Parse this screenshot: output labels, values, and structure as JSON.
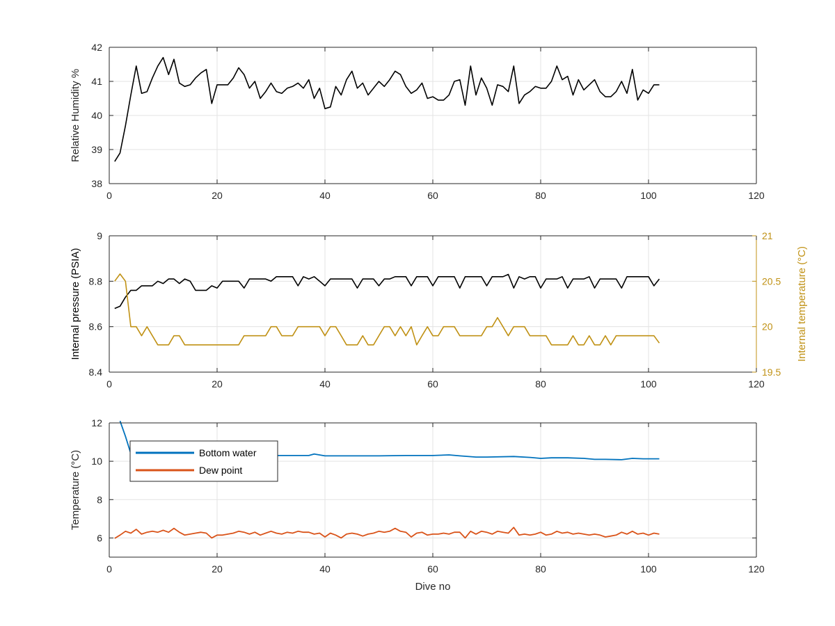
{
  "chart_data": [
    {
      "type": "line",
      "xlabel": "",
      "ylabel": "Relative Humidity %",
      "xlim": [
        0,
        120
      ],
      "ylim": [
        38,
        42
      ],
      "xticks": [
        0,
        20,
        40,
        60,
        80,
        100,
        120
      ],
      "yticks": [
        38,
        39,
        40,
        41,
        42
      ],
      "grid": true,
      "series": [
        {
          "color": "#000000",
          "x": [
            1,
            2,
            3,
            4,
            5,
            6,
            7,
            8,
            9,
            10,
            11,
            12,
            13,
            14,
            15,
            16,
            17,
            18,
            19,
            20,
            21,
            22,
            23,
            24,
            25,
            26,
            27,
            28,
            29,
            30,
            31,
            32,
            33,
            34,
            35,
            36,
            37,
            38,
            39,
            40,
            41,
            42,
            43,
            44,
            45,
            46,
            47,
            48,
            49,
            50,
            51,
            52,
            53,
            54,
            55,
            56,
            57,
            58,
            59,
            60,
            61,
            62,
            63,
            64,
            65,
            66,
            67,
            68,
            69,
            70,
            71,
            72,
            73,
            74,
            75,
            76,
            77,
            78,
            79,
            80,
            81,
            82,
            83,
            84,
            85,
            86,
            87,
            88,
            89,
            90,
            91,
            92,
            93,
            94,
            95,
            96,
            97,
            98,
            99,
            100,
            101,
            102
          ],
          "values": [
            38.65,
            38.9,
            39.7,
            40.6,
            41.45,
            40.65,
            40.7,
            41.1,
            41.45,
            41.7,
            41.2,
            41.65,
            40.95,
            40.85,
            40.9,
            41.1,
            41.25,
            41.35,
            40.35,
            40.9,
            40.9,
            40.9,
            41.1,
            41.4,
            41.2,
            40.8,
            41.0,
            40.5,
            40.7,
            40.95,
            40.7,
            40.65,
            40.8,
            40.85,
            40.95,
            40.8,
            41.05,
            40.5,
            40.8,
            40.2,
            40.25,
            40.85,
            40.6,
            41.05,
            41.3,
            40.8,
            40.95,
            40.6,
            40.8,
            41.0,
            40.85,
            41.05,
            41.3,
            41.2,
            40.85,
            40.65,
            40.75,
            40.95,
            40.5,
            40.55,
            40.45,
            40.45,
            40.6,
            41.0,
            41.05,
            40.3,
            41.45,
            40.6,
            41.1,
            40.8,
            40.3,
            40.9,
            40.85,
            40.7,
            41.45,
            40.35,
            40.6,
            40.7,
            40.85,
            40.8,
            40.8,
            41.0,
            41.45,
            41.05,
            41.15,
            40.6,
            41.05,
            40.75,
            40.9,
            41.05,
            40.7,
            40.55,
            40.55,
            40.7,
            41.0,
            40.65,
            41.35,
            40.45,
            40.75,
            40.65,
            40.9,
            40.9
          ]
        }
      ]
    },
    {
      "type": "line",
      "xlabel": "",
      "ylabel": "Internal pressure (PSIA)",
      "ylabel_right": "Internal temperature (°C)",
      "xlim": [
        0,
        120
      ],
      "ylim": [
        8.4,
        9.0
      ],
      "ylim_right": [
        19.5,
        21
      ],
      "xticks": [
        0,
        20,
        40,
        60,
        80,
        100,
        120
      ],
      "yticks": [
        8.4,
        8.6,
        8.8,
        9
      ],
      "yticks_right": [
        19.5,
        20,
        20.5,
        21
      ],
      "grid": true,
      "right_axis_color": "#c09114",
      "series": [
        {
          "color": "#000000",
          "axis": "left",
          "x": [
            1,
            2,
            3,
            4,
            5,
            6,
            7,
            8,
            9,
            10,
            11,
            12,
            13,
            14,
            15,
            16,
            17,
            18,
            19,
            20,
            21,
            22,
            23,
            24,
            25,
            26,
            27,
            28,
            29,
            30,
            31,
            32,
            33,
            34,
            35,
            36,
            37,
            38,
            39,
            40,
            41,
            42,
            43,
            44,
            45,
            46,
            47,
            48,
            49,
            50,
            51,
            52,
            53,
            54,
            55,
            56,
            57,
            58,
            59,
            60,
            61,
            62,
            63,
            64,
            65,
            66,
            67,
            68,
            69,
            70,
            71,
            72,
            73,
            74,
            75,
            76,
            77,
            78,
            79,
            80,
            81,
            82,
            83,
            84,
            85,
            86,
            87,
            88,
            89,
            90,
            91,
            92,
            93,
            94,
            95,
            96,
            97,
            98,
            99,
            100,
            101,
            102
          ],
          "values": [
            8.68,
            8.69,
            8.73,
            8.76,
            8.76,
            8.78,
            8.78,
            8.78,
            8.8,
            8.79,
            8.81,
            8.81,
            8.79,
            8.81,
            8.8,
            8.76,
            8.76,
            8.76,
            8.78,
            8.77,
            8.8,
            8.8,
            8.8,
            8.8,
            8.77,
            8.81,
            8.81,
            8.81,
            8.81,
            8.8,
            8.82,
            8.82,
            8.82,
            8.82,
            8.78,
            8.82,
            8.81,
            8.82,
            8.8,
            8.78,
            8.81,
            8.81,
            8.81,
            8.81,
            8.81,
            8.77,
            8.81,
            8.81,
            8.81,
            8.78,
            8.81,
            8.81,
            8.82,
            8.82,
            8.82,
            8.78,
            8.82,
            8.82,
            8.82,
            8.78,
            8.82,
            8.82,
            8.82,
            8.82,
            8.77,
            8.82,
            8.82,
            8.82,
            8.82,
            8.78,
            8.82,
            8.82,
            8.82,
            8.83,
            8.77,
            8.82,
            8.81,
            8.82,
            8.82,
            8.77,
            8.81,
            8.81,
            8.81,
            8.82,
            8.77,
            8.81,
            8.81,
            8.81,
            8.82,
            8.77,
            8.81,
            8.81,
            8.81,
            8.81,
            8.77,
            8.82,
            8.82,
            8.82,
            8.82,
            8.82,
            8.78,
            8.81
          ]
        },
        {
          "color": "#c09114",
          "axis": "right",
          "x": [
            1,
            2,
            3,
            4,
            5,
            6,
            7,
            8,
            9,
            10,
            11,
            12,
            13,
            14,
            15,
            16,
            17,
            18,
            19,
            20,
            21,
            22,
            23,
            24,
            25,
            26,
            27,
            28,
            29,
            30,
            31,
            32,
            33,
            34,
            35,
            36,
            37,
            38,
            39,
            40,
            41,
            42,
            43,
            44,
            45,
            46,
            47,
            48,
            49,
            50,
            51,
            52,
            53,
            54,
            55,
            56,
            57,
            58,
            59,
            60,
            61,
            62,
            63,
            64,
            65,
            66,
            67,
            68,
            69,
            70,
            71,
            72,
            73,
            74,
            75,
            76,
            77,
            78,
            79,
            80,
            81,
            82,
            83,
            84,
            85,
            86,
            87,
            88,
            89,
            90,
            91,
            92,
            93,
            94,
            95,
            96,
            97,
            98,
            99,
            100,
            101,
            102
          ],
          "values": [
            20.5,
            20.58,
            20.5,
            20.0,
            20.0,
            19.9,
            20.0,
            19.9,
            19.8,
            19.8,
            19.8,
            19.9,
            19.9,
            19.8,
            19.8,
            19.8,
            19.8,
            19.8,
            19.8,
            19.8,
            19.8,
            19.8,
            19.8,
            19.8,
            19.9,
            19.9,
            19.9,
            19.9,
            19.9,
            20.0,
            20.0,
            19.9,
            19.9,
            19.9,
            20.0,
            20.0,
            20.0,
            20.0,
            20.0,
            19.9,
            20.0,
            20.0,
            19.9,
            19.8,
            19.8,
            19.8,
            19.9,
            19.8,
            19.8,
            19.9,
            20.0,
            20.0,
            19.9,
            20.0,
            19.9,
            20.0,
            19.8,
            19.9,
            20.0,
            19.9,
            19.9,
            20.0,
            20.0,
            20.0,
            19.9,
            19.9,
            19.9,
            19.9,
            19.9,
            20.0,
            20.0,
            20.1,
            20.0,
            19.9,
            20.0,
            20.0,
            20.0,
            19.9,
            19.9,
            19.9,
            19.9,
            19.8,
            19.8,
            19.8,
            19.8,
            19.9,
            19.8,
            19.8,
            19.9,
            19.8,
            19.8,
            19.9,
            19.8,
            19.9,
            19.9,
            19.9,
            19.9,
            19.9,
            19.9,
            19.9,
            19.9,
            19.82
          ]
        }
      ]
    },
    {
      "type": "line",
      "xlabel": "Dive no",
      "ylabel": "Temperature (°C)",
      "xlim": [
        0,
        120
      ],
      "ylim": [
        5,
        12
      ],
      "xticks": [
        0,
        20,
        40,
        60,
        80,
        100,
        120
      ],
      "yticks": [
        6,
        8,
        10,
        12
      ],
      "grid": true,
      "legend_position": "top-left",
      "series": [
        {
          "name": "Bottom water",
          "color": "#0072bd",
          "x": [
            2,
            3,
            4,
            5,
            10,
            20,
            30,
            35,
            37,
            38,
            40,
            45,
            50,
            55,
            60,
            63,
            65,
            68,
            70,
            75,
            78,
            80,
            82,
            85,
            88,
            90,
            92,
            95,
            97,
            99,
            102
          ],
          "values": [
            12.1,
            11.3,
            10.4,
            10.3,
            10.3,
            10.3,
            10.3,
            10.3,
            10.3,
            10.38,
            10.28,
            10.28,
            10.28,
            10.3,
            10.3,
            10.33,
            10.28,
            10.22,
            10.22,
            10.25,
            10.2,
            10.15,
            10.18,
            10.18,
            10.15,
            10.1,
            10.1,
            10.08,
            10.15,
            10.13,
            10.13
          ]
        },
        {
          "name": "Dew point",
          "color": "#d95319",
          "x": [
            1,
            2,
            3,
            4,
            5,
            6,
            7,
            8,
            9,
            10,
            11,
            12,
            13,
            14,
            15,
            16,
            17,
            18,
            19,
            20,
            21,
            22,
            23,
            24,
            25,
            26,
            27,
            28,
            29,
            30,
            31,
            32,
            33,
            34,
            35,
            36,
            37,
            38,
            39,
            40,
            41,
            42,
            43,
            44,
            45,
            46,
            47,
            48,
            49,
            50,
            51,
            52,
            53,
            54,
            55,
            56,
            57,
            58,
            59,
            60,
            61,
            62,
            63,
            64,
            65,
            66,
            67,
            68,
            69,
            70,
            71,
            72,
            73,
            74,
            75,
            76,
            77,
            78,
            79,
            80,
            81,
            82,
            83,
            84,
            85,
            86,
            87,
            88,
            89,
            90,
            91,
            92,
            93,
            94,
            95,
            96,
            97,
            98,
            99,
            100,
            101,
            102
          ],
          "values": [
            5.98,
            6.15,
            6.35,
            6.25,
            6.45,
            6.2,
            6.3,
            6.35,
            6.3,
            6.4,
            6.3,
            6.5,
            6.3,
            6.15,
            6.2,
            6.25,
            6.3,
            6.25,
            6.0,
            6.15,
            6.15,
            6.2,
            6.25,
            6.35,
            6.3,
            6.2,
            6.3,
            6.15,
            6.25,
            6.35,
            6.25,
            6.2,
            6.3,
            6.25,
            6.35,
            6.3,
            6.3,
            6.2,
            6.25,
            6.05,
            6.25,
            6.15,
            6.0,
            6.2,
            6.25,
            6.2,
            6.1,
            6.2,
            6.25,
            6.35,
            6.3,
            6.35,
            6.5,
            6.35,
            6.3,
            6.05,
            6.25,
            6.3,
            6.15,
            6.2,
            6.2,
            6.25,
            6.2,
            6.3,
            6.3,
            6.0,
            6.35,
            6.2,
            6.35,
            6.3,
            6.2,
            6.35,
            6.3,
            6.25,
            6.55,
            6.15,
            6.2,
            6.15,
            6.2,
            6.3,
            6.15,
            6.2,
            6.35,
            6.25,
            6.3,
            6.2,
            6.25,
            6.2,
            6.15,
            6.2,
            6.15,
            6.05,
            6.1,
            6.15,
            6.3,
            6.2,
            6.35,
            6.2,
            6.25,
            6.15,
            6.25,
            6.2
          ]
        }
      ]
    }
  ]
}
